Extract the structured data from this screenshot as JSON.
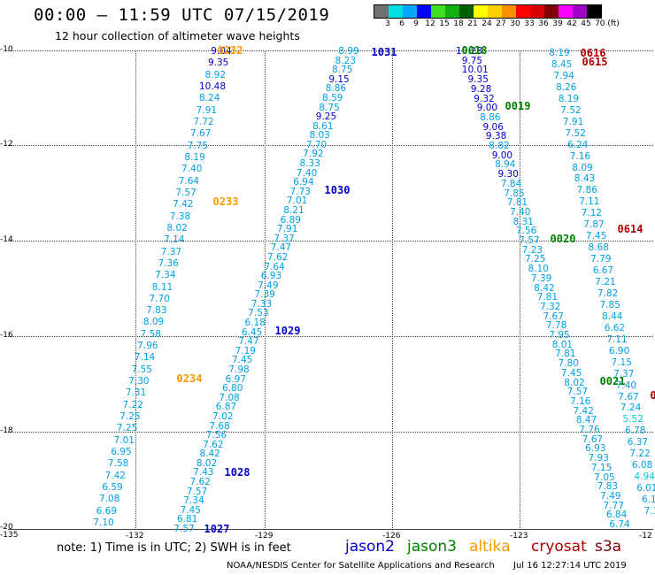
{
  "header": {
    "title": "00:00 – 11:59 UTC 07/15/2019",
    "subtitle": "12 hour collection of altimeter wave heights"
  },
  "colorbar": {
    "labels": [
      "3",
      "6",
      "9",
      "12",
      "15",
      "18",
      "21",
      "24",
      "27",
      "30",
      "33",
      "36",
      "39",
      "42",
      "45",
      "70 (ft)"
    ],
    "colors": [
      "#707070",
      "#00e0e0",
      "#00a8ff",
      "#0000ff",
      "#40e020",
      "#10b010",
      "#006000",
      "#ffff00",
      "#ffd000",
      "#ff9000",
      "#ff0000",
      "#d80000",
      "#800000",
      "#ff00ff",
      "#a000c8",
      "#000000"
    ]
  },
  "axes": {
    "x_ticks": [
      "-135",
      "-132",
      "-129",
      "-126",
      "-123",
      "-12"
    ],
    "y_ticks": [
      "-10",
      "-12",
      "-14",
      "-16",
      "-18",
      "-20"
    ]
  },
  "legend": {
    "note": "note:  1) Time is in UTC;  2) SWH is in feet",
    "satellites": [
      {
        "name": "jason2",
        "color": "#0000c8"
      },
      {
        "name": "jason3",
        "color": "#008000"
      },
      {
        "name": "altika",
        "color": "#ff9900"
      },
      {
        "name": "cryosat",
        "color": "#b00000"
      },
      {
        "name": "s3a",
        "color": "#800000"
      }
    ]
  },
  "footer": {
    "credit": "NOAA/NESDIS Center for Satellite Applications and Research",
    "timestamp": "Jul 16 12:27:14 UTC 2019"
  },
  "time_labels": [
    {
      "text": "0232",
      "color": "#ff9900"
    },
    {
      "text": "0233",
      "color": "#ff9900"
    },
    {
      "text": "0234",
      "color": "#ff9900"
    },
    {
      "text": "1031",
      "color": "#0000c8"
    },
    {
      "text": "1030",
      "color": "#0000c8"
    },
    {
      "text": "1029",
      "color": "#0000c8"
    },
    {
      "text": "1028",
      "color": "#0000c8"
    },
    {
      "text": "1027",
      "color": "#0000c8"
    },
    {
      "text": "0018",
      "color": "#008000"
    },
    {
      "text": "0019",
      "color": "#008000"
    },
    {
      "text": "0020",
      "color": "#008000"
    },
    {
      "text": "0021",
      "color": "#008000"
    },
    {
      "text": "0616",
      "color": "#b00000"
    },
    {
      "text": "0615",
      "color": "#b00000"
    },
    {
      "text": "0614",
      "color": "#b00000"
    },
    {
      "text": "0",
      "color": "#b00000"
    }
  ],
  "tracks": {
    "altika": [
      "9.04",
      "9.35",
      "8.92",
      "10.48",
      "8.24",
      "7.91",
      "7.72",
      "7.67",
      "7.75",
      "8.19",
      "7.40",
      "7.64",
      "7.57",
      "7.42",
      "7.38",
      "8.02",
      "7.14",
      "7.37",
      "7.36",
      "7.34",
      "8.11",
      "7.70",
      "7.83",
      "8.09",
      "7.58",
      "7.96",
      "7.14",
      "7.55",
      "7.30",
      "7.31",
      "7.22",
      "7.25",
      "7.25",
      "7.01",
      "6.95",
      "7.58",
      "7.42",
      "6.59",
      "7.08",
      "6.69",
      "7.10"
    ],
    "jason2_a": [
      "8.99",
      "8.23",
      "8.75",
      "9.15",
      "8.86",
      "8.59",
      "8.75",
      "9.25",
      "8.61",
      "8.03",
      "7.70",
      "7.92",
      "8.33",
      "7.40",
      "6.94",
      "7.73",
      "7.01",
      "8.21",
      "6.89",
      "7.91",
      "7.37",
      "7.47",
      "7.62",
      "7.64",
      "6.93",
      "7.49",
      "7.39",
      "7.33",
      "7.53",
      "6.18",
      "6.45",
      "7.47",
      "7.19",
      "7.45",
      "7.98",
      "6.97",
      "6.80",
      "7.08",
      "6.87",
      "7.02",
      "7.68",
      "7.56",
      "7.62",
      "8.42",
      "8.02",
      "7.43",
      "7.62",
      "7.57",
      "7.34",
      "7.45",
      "6.81",
      "7.57"
    ],
    "jason3_a": [
      "10.28",
      "9.75",
      "10.01",
      "9.35",
      "9.28",
      "9.32",
      "9.00",
      "8.86",
      "9.06",
      "9.38",
      "8.82",
      "9.00",
      "8.94",
      "9.30",
      "7.84",
      "7.85",
      "7.81",
      "7.40",
      "8.31",
      "7.56",
      "7.57",
      "7.23",
      "7.25",
      "8.10",
      "7.39",
      "8.42",
      "7.81",
      "7.32",
      "7.67",
      "7.78",
      "7.95",
      "8.01",
      "7.81",
      "7.80",
      "7.45",
      "8.02",
      "7.57",
      "7.16",
      "7.42",
      "8.47",
      "7.76",
      "7.67",
      "6.93",
      "7.93",
      "7.15",
      "7.05",
      "7.83",
      "7.49",
      "7.77",
      "6.84",
      "6.74"
    ],
    "cryosat_a": [
      "8.19",
      "8.45",
      "7.94",
      "8.26",
      "8.19",
      "7.52",
      "7.91",
      "7.52",
      "6.24",
      "7.16",
      "8.09",
      "8.43",
      "7.86",
      "7.11",
      "7.12",
      "7.87",
      "7.45",
      "8.68",
      "7.79",
      "6.67",
      "7.21",
      "7.82",
      "7.85",
      "8.44",
      "6.62",
      "7.11",
      "6.90",
      "7.15",
      "7.37",
      "7.40",
      "7.67",
      "7.24",
      "5.52",
      "6.78",
      "6.37",
      "7.22",
      "6.08",
      "4.94",
      "6.01",
      "6.1",
      "7.1"
    ]
  }
}
